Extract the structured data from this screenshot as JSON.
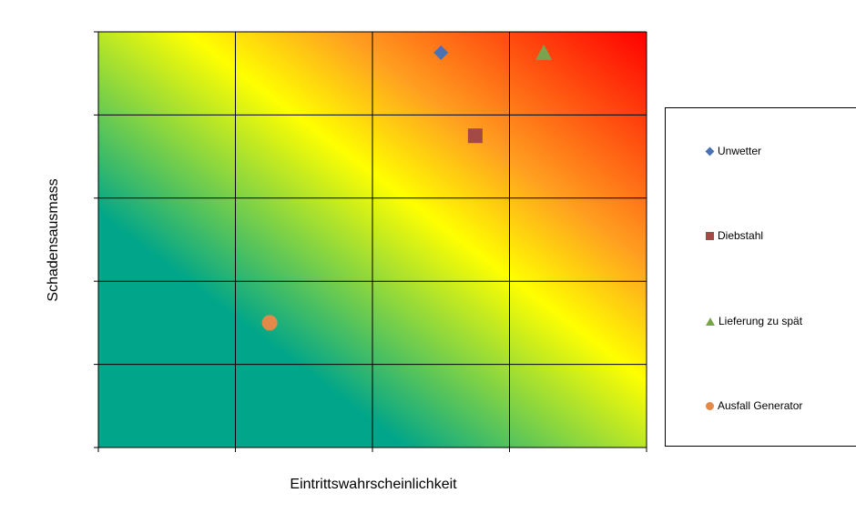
{
  "chart_data": {
    "type": "scatter",
    "title": "",
    "xlabel": "Eintrittswahrscheinlichkeit",
    "ylabel": "Schadensausmass",
    "xlim": [
      0,
      4
    ],
    "ylim": [
      0,
      5
    ],
    "grid": true,
    "tick_labels": false,
    "legend_position": "right",
    "background": "diagonal gradient from teal (bottom-left) through yellow to red (top-right)",
    "colors": {
      "teal": "#00a58a",
      "yellow": "#ffff00",
      "orange": "#ffa020",
      "red": "#ff0000"
    },
    "series": [
      {
        "name": "Unwetter",
        "marker": "diamond",
        "color": "#4a72b0",
        "x": [
          2.5
        ],
        "y": [
          4.75
        ]
      },
      {
        "name": "Diebstahl",
        "marker": "square",
        "color": "#a44a44",
        "x": [
          2.75
        ],
        "y": [
          3.75
        ]
      },
      {
        "name": "Lieferung zu spät",
        "marker": "triangle",
        "color": "#7aa34f",
        "x": [
          3.25
        ],
        "y": [
          4.75
        ]
      },
      {
        "name": "Ausfall Generator",
        "marker": "circle",
        "color": "#e38a4b",
        "x": [
          1.25
        ],
        "y": [
          1.5
        ]
      }
    ]
  }
}
